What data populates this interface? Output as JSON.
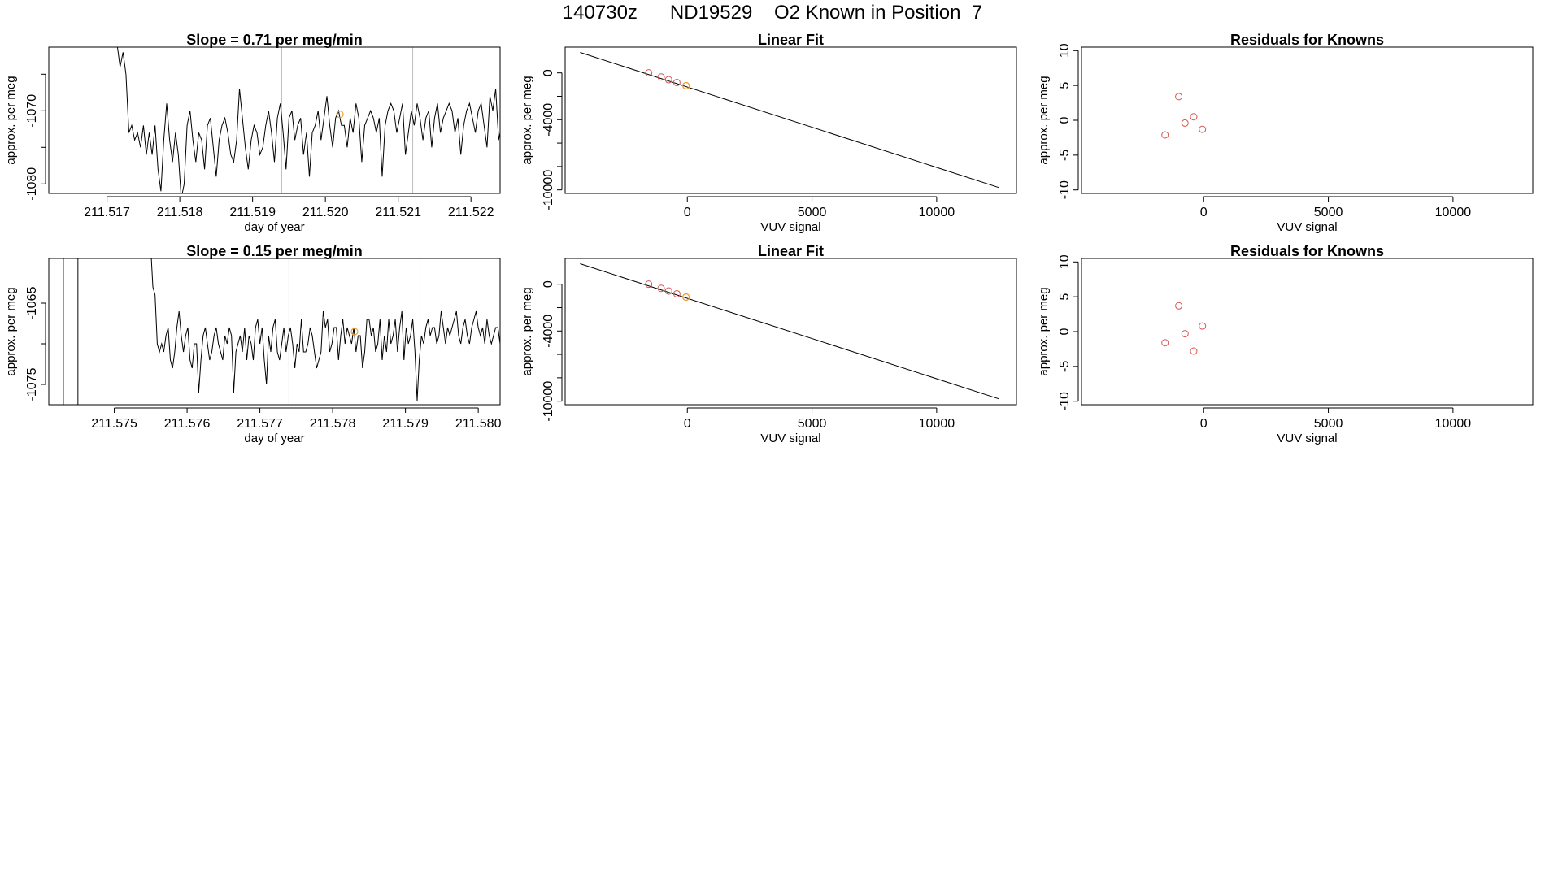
{
  "page_title": "140730z      ND19529    O2 Known in Position  7",
  "colors": {
    "axis": "#000000",
    "trace": "#000000",
    "marker_window": "#bdbdbd",
    "point": "#d9534f",
    "highlight": "#f0a030"
  },
  "chart_data": [
    {
      "type": "line",
      "title": "Slope =  0.71  per meg/min",
      "xlabel": "day of year",
      "ylabel": "approx. per meg",
      "xlim": [
        211.5162,
        211.5224
      ],
      "ylim": [
        -1081.3,
        -1061.3
      ],
      "xticks": [
        211.517,
        211.518,
        211.519,
        211.52,
        211.521,
        211.522
      ],
      "xtick_labels": [
        "211.517",
        "211.518",
        "211.519",
        "211.520",
        "211.521",
        "211.522"
      ],
      "yticks": [
        -1080,
        -1075,
        -1070,
        -1065
      ],
      "ytick_labels": [
        "-1080",
        "",
        "-1070",
        ""
      ],
      "vlines": [
        211.5194,
        211.5212
      ],
      "highlight_points": [
        {
          "x": 211.5202,
          "y": -1070.5
        }
      ],
      "series": [
        {
          "x_start": 211.5171,
          "x_step": 4e-05,
          "values": [
            -1055,
            -1061,
            -1064,
            -1062,
            -1065,
            -1073,
            -1072,
            -1074,
            -1073,
            -1075,
            -1072,
            -1076,
            -1073,
            -1076,
            -1072,
            -1078,
            -1081,
            -1074,
            -1069,
            -1074,
            -1077,
            -1073,
            -1076,
            -1082,
            -1080,
            -1072,
            -1070,
            -1074,
            -1077,
            -1073,
            -1074,
            -1078,
            -1072,
            -1071,
            -1075,
            -1079,
            -1074,
            -1072,
            -1071,
            -1073,
            -1076,
            -1077,
            -1074,
            -1067,
            -1071,
            -1075,
            -1078,
            -1074,
            -1072,
            -1073,
            -1076,
            -1075,
            -1072,
            -1070,
            -1073,
            -1077,
            -1071,
            -1069,
            -1073,
            -1078,
            -1071,
            -1070,
            -1074,
            -1072,
            -1071,
            -1076,
            -1073,
            -1079,
            -1073,
            -1072,
            -1070,
            -1074,
            -1071,
            -1068,
            -1072,
            -1075,
            -1071,
            -1070,
            -1072,
            -1072,
            -1075,
            -1071,
            -1073,
            -1069,
            -1071,
            -1077,
            -1072,
            -1071,
            -1070,
            -1071,
            -1073,
            -1071,
            -1079,
            -1072,
            -1070,
            -1069,
            -1070,
            -1073,
            -1071,
            -1069,
            -1076,
            -1073,
            -1070,
            -1072,
            -1069,
            -1071,
            -1074,
            -1071,
            -1070,
            -1075,
            -1071,
            -1069,
            -1073,
            -1071,
            -1070,
            -1069,
            -1070,
            -1073,
            -1071,
            -1076,
            -1072,
            -1070,
            -1069,
            -1071,
            -1073,
            -1070,
            -1069,
            -1072,
            -1075,
            -1068,
            -1070,
            -1067,
            -1074,
            -1072,
            -1068,
            -1066,
            -1071,
            -1075,
            -1071,
            -1066,
            -1073,
            -1070,
            -1065,
            -1073,
            -1076,
            -1069,
            -1067,
            -1066,
            -1078,
            -1072,
            -1069,
            -1071,
            -1065,
            -1074,
            -1067,
            -1068,
            -1068,
            -1066,
            -1072,
            -1069,
            -1068,
            -1065,
            -1072,
            -1067,
            -1066,
            -1068,
            -1071,
            -1067,
            -1064,
            -1063,
            -1058
          ]
        }
      ]
    },
    {
      "type": "line",
      "title": "Linear Fit",
      "xlabel": "VUV signal",
      "ylabel": "approx. per meg",
      "xlim": [
        -4900,
        13200
      ],
      "ylim": [
        -10300,
        2200
      ],
      "xticks": [
        0,
        5000,
        10000
      ],
      "xtick_labels": [
        "0",
        "5000",
        "10000"
      ],
      "yticks": [
        0,
        -4000,
        -10000
      ],
      "ytick_labels": [
        "0",
        "-4000",
        "-10000"
      ],
      "minor_yticks": [
        0,
        -2000,
        -4000,
        -6000,
        -8000,
        -10000
      ],
      "fit_line": [
        [
          -4300,
          1750
        ],
        [
          12500,
          -9800
        ]
      ],
      "points": [
        {
          "x": -1550,
          "y": 0
        },
        {
          "x": -1050,
          "y": -350
        },
        {
          "x": -750,
          "y": -580
        },
        {
          "x": -420,
          "y": -820
        },
        {
          "x": -50,
          "y": -1100
        }
      ],
      "highlight_points": [
        {
          "x": -50,
          "y": -1100
        }
      ]
    },
    {
      "type": "scatter",
      "title": "Residuals for Knowns",
      "xlabel": "VUV signal",
      "ylabel": "approx. per meg",
      "xlim": [
        -4900,
        13200
      ],
      "ylim": [
        -10.5,
        10.5
      ],
      "xticks": [
        0,
        5000,
        10000
      ],
      "xtick_labels": [
        "0",
        "5000",
        "10000"
      ],
      "yticks": [
        10,
        5,
        0,
        -5,
        -10
      ],
      "ytick_labels": [
        "10",
        "5",
        "0",
        "-5",
        "-10"
      ],
      "points": [
        {
          "x": -1550,
          "y": -2.1
        },
        {
          "x": -1000,
          "y": 3.4
        },
        {
          "x": -750,
          "y": -0.4
        },
        {
          "x": -400,
          "y": 0.5
        },
        {
          "x": -50,
          "y": -1.3
        }
      ]
    },
    {
      "type": "line",
      "title": "Slope =  0.15  per meg/min",
      "xlabel": "day of year",
      "ylabel": "approx. per meg",
      "xlim": [
        211.5741,
        211.5803
      ],
      "ylim": [
        -1077.5,
        -1059.5
      ],
      "xticks": [
        211.575,
        211.576,
        211.577,
        211.578,
        211.579,
        211.58
      ],
      "xtick_labels": [
        "211.575",
        "211.576",
        "211.577",
        "211.578",
        "211.579",
        "211.580"
      ],
      "yticks": [
        -1075,
        -1070,
        -1065
      ],
      "ytick_labels": [
        "-1075",
        "",
        "-1065"
      ],
      "vlines": [
        211.5743,
        211.5745,
        211.5774,
        211.5792
      ],
      "vlines_dark": [
        211.5743,
        211.5745
      ],
      "highlight_points": [
        {
          "x": 211.5783,
          "y": -1068.5
        }
      ],
      "series": [
        {
          "x_start": 211.5755,
          "x_step": 3e-05,
          "values": [
            -1058,
            -1063,
            -1064,
            -1070,
            -1071,
            -1070,
            -1071,
            -1069,
            -1068,
            -1072,
            -1073,
            -1071,
            -1068,
            -1066,
            -1069,
            -1071,
            -1069,
            -1068,
            -1072,
            -1073,
            -1070,
            -1070,
            -1076,
            -1072,
            -1069,
            -1068,
            -1070,
            -1072,
            -1071,
            -1069,
            -1068,
            -1070,
            -1071,
            -1072,
            -1069,
            -1070,
            -1068,
            -1069,
            -1076,
            -1071,
            -1070,
            -1069,
            -1071,
            -1068,
            -1072,
            -1069,
            -1070,
            -1072,
            -1068,
            -1067,
            -1070,
            -1068,
            -1072,
            -1075,
            -1069,
            -1071,
            -1068,
            -1067,
            -1071,
            -1072,
            -1070,
            -1068,
            -1071,
            -1069,
            -1068,
            -1070,
            -1073,
            -1070,
            -1071,
            -1067,
            -1071,
            -1071,
            -1070,
            -1068,
            -1069,
            -1071,
            -1073,
            -1072,
            -1071,
            -1066,
            -1068,
            -1067,
            -1071,
            -1070,
            -1068,
            -1068,
            -1072,
            -1069,
            -1067,
            -1070,
            -1068,
            -1069,
            -1070,
            -1068,
            -1071,
            -1069,
            -1069,
            -1073,
            -1071,
            -1067,
            -1067,
            -1069,
            -1068,
            -1071,
            -1070,
            -1067,
            -1072,
            -1069,
            -1071,
            -1067,
            -1070,
            -1069,
            -1067,
            -1071,
            -1068,
            -1066,
            -1072,
            -1068,
            -1070,
            -1069,
            -1067,
            -1071,
            -1077,
            -1072,
            -1069,
            -1070,
            -1068,
            -1067,
            -1069,
            -1068,
            -1068,
            -1070,
            -1069,
            -1066,
            -1068,
            -1070,
            -1068,
            -1069,
            -1068,
            -1067,
            -1066,
            -1069,
            -1070,
            -1068,
            -1067,
            -1069,
            -1070,
            -1068,
            -1067,
            -1066,
            -1068,
            -1069,
            -1068,
            -1070,
            -1067,
            -1069,
            -1070,
            -1069,
            -1068,
            -1068,
            -1070,
            -1064,
            -1067,
            -1068,
            -1070,
            -1069,
            -1066,
            -1063,
            -1061,
            -1055
          ]
        }
      ]
    },
    {
      "type": "line",
      "title": "Linear Fit",
      "xlabel": "VUV signal",
      "ylabel": "approx. per meg",
      "xlim": [
        -4900,
        13200
      ],
      "ylim": [
        -10300,
        2200
      ],
      "xticks": [
        0,
        5000,
        10000
      ],
      "xtick_labels": [
        "0",
        "5000",
        "10000"
      ],
      "yticks": [
        0,
        -4000,
        -10000
      ],
      "ytick_labels": [
        "0",
        "-4000",
        "-10000"
      ],
      "minor_yticks": [
        0,
        -2000,
        -4000,
        -6000,
        -8000,
        -10000
      ],
      "fit_line": [
        [
          -4300,
          1750
        ],
        [
          12500,
          -9800
        ]
      ],
      "points": [
        {
          "x": -1550,
          "y": 0
        },
        {
          "x": -1050,
          "y": -350
        },
        {
          "x": -750,
          "y": -580
        },
        {
          "x": -420,
          "y": -820
        },
        {
          "x": -50,
          "y": -1100
        }
      ],
      "highlight_points": [
        {
          "x": -50,
          "y": -1100
        }
      ]
    },
    {
      "type": "scatter",
      "title": "Residuals for Knowns",
      "xlabel": "VUV signal",
      "ylabel": "approx. per meg",
      "xlim": [
        -4900,
        13200
      ],
      "ylim": [
        -10.5,
        10.5
      ],
      "xticks": [
        0,
        5000,
        10000
      ],
      "xtick_labels": [
        "0",
        "5000",
        "10000"
      ],
      "yticks": [
        10,
        5,
        0,
        -5,
        -10
      ],
      "ytick_labels": [
        "10",
        "5",
        "0",
        "-5",
        "-10"
      ],
      "points": [
        {
          "x": -1550,
          "y": -1.6
        },
        {
          "x": -1000,
          "y": 3.7
        },
        {
          "x": -750,
          "y": -0.3
        },
        {
          "x": -400,
          "y": -2.8
        },
        {
          "x": -50,
          "y": 0.8
        }
      ]
    }
  ]
}
